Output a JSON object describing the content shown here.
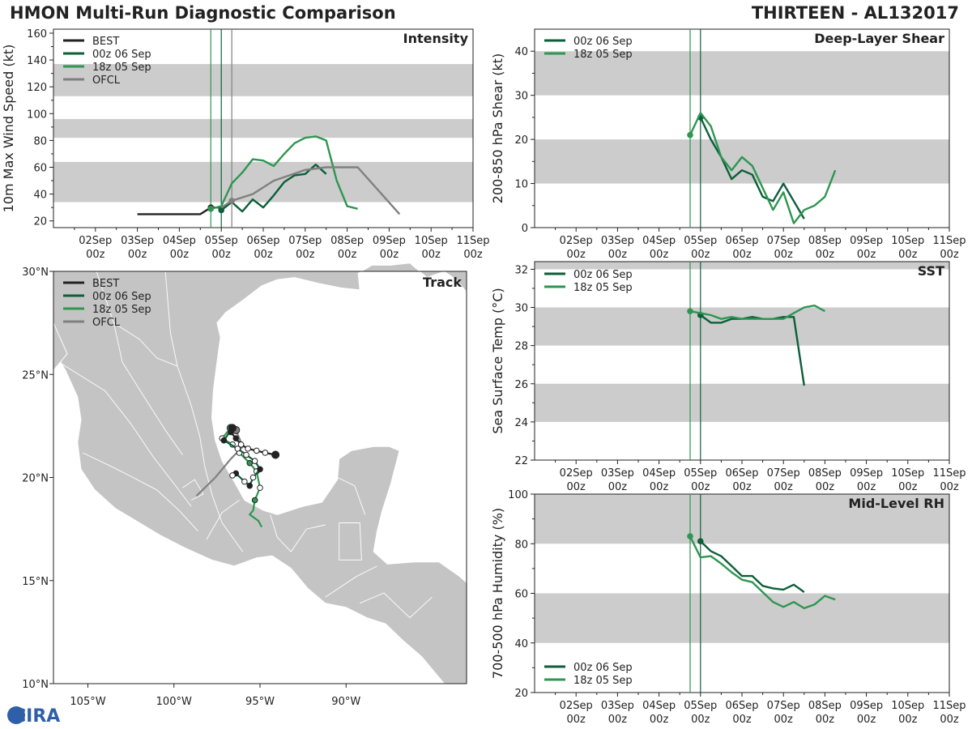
{
  "header": {
    "left_title": "HMON Multi-Run Diagnostic Comparison",
    "right_title": "THIRTEEN - AL132017"
  },
  "logo": {
    "text": "CIRA"
  },
  "colors": {
    "best": "#222222",
    "run00": "#0c5f3a",
    "run18": "#2e9650",
    "ofcl": "#808080",
    "band": "#cccccc",
    "land": "#c4c4c4"
  },
  "time_axis": {
    "ticks": [
      "02Sep",
      "03Sep",
      "04Sep",
      "05Sep",
      "06Sep",
      "07Sep",
      "08Sep",
      "09Sep",
      "10Sep",
      "11Sep"
    ],
    "sub": "00z",
    "range_days": [
      1.0,
      11.0
    ],
    "vlines": [
      4.75,
      5.0,
      5.25
    ]
  },
  "chart_data": [
    {
      "id": "intensity",
      "type": "line",
      "title": "Intensity",
      "ylabel": "10m Max Wind Speed (kt)",
      "ylim": [
        15,
        163
      ],
      "yticks": [
        20,
        40,
        60,
        80,
        100,
        120,
        140,
        160
      ],
      "bands": [
        [
          34,
          64
        ],
        [
          82,
          96
        ],
        [
          113,
          137
        ]
      ],
      "legend": [
        "BEST",
        "00z 06 Sep",
        "18z 05 Sep",
        "OFCL"
      ],
      "series": [
        {
          "name": "BEST",
          "color": "#222222",
          "x": [
            3.0,
            3.5,
            4.0,
            4.5,
            4.75,
            5.0
          ],
          "y": [
            25,
            25,
            25,
            25,
            30,
            30
          ],
          "marker": [
            4.75,
            30
          ]
        },
        {
          "name": "00z 06 Sep",
          "color": "#0c5f3a",
          "x": [
            5.0,
            5.25,
            5.5,
            5.75,
            6.0,
            6.25,
            6.5,
            6.75,
            7.0,
            7.25,
            7.5
          ],
          "y": [
            28,
            34,
            27,
            36,
            30,
            39,
            49,
            54,
            55,
            62,
            55
          ],
          "marker": [
            5.0,
            28
          ]
        },
        {
          "name": "18z 05 Sep",
          "color": "#2e9650",
          "x": [
            4.75,
            5.0,
            5.25,
            5.5,
            5.75,
            6.0,
            6.25,
            6.5,
            6.75,
            7.0,
            7.25,
            7.5,
            7.75,
            8.0,
            8.25
          ],
          "y": [
            29,
            31,
            48,
            56,
            66,
            65,
            61,
            70,
            78,
            82,
            83,
            80,
            50,
            31,
            29
          ],
          "marker": [
            4.75,
            29
          ]
        },
        {
          "name": "OFCL",
          "color": "#808080",
          "x": [
            5.0,
            5.25,
            5.75,
            6.25,
            7.0,
            7.5,
            8.25,
            9.25
          ],
          "y": [
            30,
            35,
            40,
            50,
            58,
            60,
            60,
            25
          ],
          "marker": [
            5.25,
            35
          ]
        }
      ]
    },
    {
      "id": "shear",
      "type": "line",
      "title": "Deep-Layer Shear",
      "ylabel": "200-850 hPa Shear (kt)",
      "ylim": [
        0,
        45
      ],
      "yticks": [
        0,
        10,
        20,
        30,
        40
      ],
      "bands": [
        [
          10,
          20
        ],
        [
          30,
          40
        ]
      ],
      "legend": [
        "00z 06 Sep",
        "18z 05 Sep"
      ],
      "series": [
        {
          "name": "00z 06 Sep",
          "color": "#0c5f3a",
          "x": [
            5.0,
            5.25,
            5.5,
            5.75,
            6.0,
            6.25,
            6.5,
            6.75,
            7.0,
            7.25,
            7.5
          ],
          "y": [
            25,
            20,
            16,
            11,
            13,
            12,
            7,
            6,
            10,
            6,
            2
          ],
          "marker": [
            5.0,
            25
          ]
        },
        {
          "name": "18z 05 Sep",
          "color": "#2e9650",
          "x": [
            4.75,
            5.0,
            5.25,
            5.5,
            5.75,
            6.0,
            6.25,
            6.5,
            6.75,
            7.0,
            7.25,
            7.5,
            7.75,
            8.0,
            8.25
          ],
          "y": [
            21,
            26,
            23,
            16,
            13,
            16,
            14,
            9,
            4,
            8,
            1,
            4,
            5,
            7,
            13
          ],
          "marker": [
            4.75,
            21
          ]
        }
      ]
    },
    {
      "id": "sst",
      "type": "line",
      "title": "SST",
      "ylabel": "Sea Surface Temp (°C)",
      "ylim": [
        22,
        32.4
      ],
      "yticks": [
        22,
        24,
        26,
        28,
        30,
        32
      ],
      "bands": [
        [
          24,
          26
        ],
        [
          28,
          30
        ],
        [
          32,
          32.4
        ]
      ],
      "legend": [
        "00z 06 Sep",
        "18z 05 Sep"
      ],
      "series": [
        {
          "name": "00z 06 Sep",
          "color": "#0c5f3a",
          "x": [
            5.0,
            5.25,
            5.5,
            5.75,
            6.0,
            6.25,
            6.5,
            6.75,
            7.0,
            7.25,
            7.5
          ],
          "y": [
            29.6,
            29.2,
            29.2,
            29.4,
            29.4,
            29.5,
            29.4,
            29.4,
            29.5,
            29.5,
            25.9
          ],
          "marker": [
            5.0,
            29.6
          ]
        },
        {
          "name": "18z 05 Sep",
          "color": "#2e9650",
          "x": [
            4.75,
            5.0,
            5.25,
            5.5,
            5.75,
            6.0,
            6.25,
            6.5,
            6.75,
            7.0,
            7.25,
            7.5,
            7.75,
            8.0
          ],
          "y": [
            29.8,
            29.7,
            29.6,
            29.4,
            29.5,
            29.4,
            29.4,
            29.4,
            29.4,
            29.4,
            29.7,
            30.0,
            30.1,
            29.8
          ],
          "marker": [
            4.75,
            29.8
          ]
        }
      ]
    },
    {
      "id": "rh",
      "type": "line",
      "title": "Mid-Level RH",
      "ylabel": "700-500 hPa Humidity (%)",
      "ylim": [
        20,
        100
      ],
      "yticks": [
        20,
        40,
        60,
        80,
        100
      ],
      "bands": [
        [
          40,
          60
        ],
        [
          80,
          100
        ]
      ],
      "legend": [
        "00z 06 Sep",
        "18z 05 Sep"
      ],
      "series": [
        {
          "name": "00z 06 Sep",
          "color": "#0c5f3a",
          "x": [
            5.0,
            5.25,
            5.5,
            5.75,
            6.0,
            6.25,
            6.5,
            6.75,
            7.0,
            7.25,
            7.5
          ],
          "y": [
            81,
            77,
            75,
            71,
            67,
            67,
            63,
            62,
            61.5,
            63.5,
            60.5
          ],
          "marker": [
            5.0,
            81
          ]
        },
        {
          "name": "18z 05 Sep",
          "color": "#2e9650",
          "x": [
            4.75,
            5.0,
            5.25,
            5.5,
            5.75,
            6.0,
            6.25,
            6.5,
            6.75,
            7.0,
            7.25,
            7.5,
            7.75,
            8.0,
            8.25
          ],
          "y": [
            83,
            74.5,
            75,
            72,
            68.5,
            65.5,
            64.5,
            60.5,
            56.5,
            54.5,
            56.5,
            54,
            55.5,
            59,
            57.5
          ],
          "marker": [
            4.75,
            83
          ]
        }
      ]
    },
    {
      "id": "track",
      "type": "line",
      "title": "Track",
      "xlabel_ticks": [
        "105°W",
        "100°W",
        "95°W",
        "90°W"
      ],
      "ylabel_ticks": [
        "30°N",
        "25°N",
        "20°N",
        "15°N",
        "10°N"
      ],
      "lon_range": [
        -107,
        -83
      ],
      "lat_range": [
        10,
        30
      ],
      "legend": [
        "BEST",
        "00z 06 Sep",
        "18z 05 Sep",
        "OFCL"
      ],
      "series": [
        {
          "name": "BEST",
          "color": "#222222",
          "lon": [
            -94.1,
            -94.7,
            -95.2,
            -95.7,
            -96.1,
            -96.4,
            -96.7
          ],
          "lat": [
            21.1,
            21.2,
            21.3,
            21.4,
            21.6,
            21.9,
            22.2
          ],
          "filled": [
            true,
            false,
            false,
            false,
            false,
            true,
            true
          ]
        },
        {
          "name": "00z 06 Sep",
          "color": "#0c5f3a",
          "lon": [
            -96.6,
            -97.1,
            -96.3,
            -95.8,
            -95.3,
            -95.0,
            -95.4,
            -95.6,
            -95.9,
            -96.4,
            -96.6
          ],
          "lat": [
            22.4,
            21.8,
            21.4,
            21.1,
            20.8,
            20.4,
            20.0,
            19.6,
            19.8,
            20.2,
            20.1
          ],
          "filled": [
            true,
            true,
            false,
            false,
            false,
            true,
            false,
            true,
            false,
            true,
            false
          ]
        },
        {
          "name": "18z 05 Sep",
          "color": "#2e9650",
          "lon": [
            -96.7,
            -97.2,
            -96.6,
            -96.2,
            -95.6,
            -95.2,
            -95.0,
            -95.3,
            -95.4,
            -95.6,
            -95.1,
            -94.9
          ],
          "lat": [
            22.4,
            21.9,
            21.6,
            21.2,
            20.7,
            20.3,
            19.5,
            18.9,
            18.4,
            18.2,
            17.9,
            17.6
          ],
          "filled": [
            true,
            false,
            false,
            false,
            true,
            false,
            false,
            true,
            false,
            false,
            false,
            false
          ]
        },
        {
          "name": "OFCL",
          "color": "#808080",
          "lon": [
            -96.4,
            -96.0,
            -96.7,
            -97.6,
            -98.7
          ],
          "lat": [
            22.3,
            21.5,
            20.9,
            20.0,
            19.1
          ],
          "filled": [
            true,
            false,
            false,
            false,
            false
          ]
        }
      ]
    }
  ]
}
